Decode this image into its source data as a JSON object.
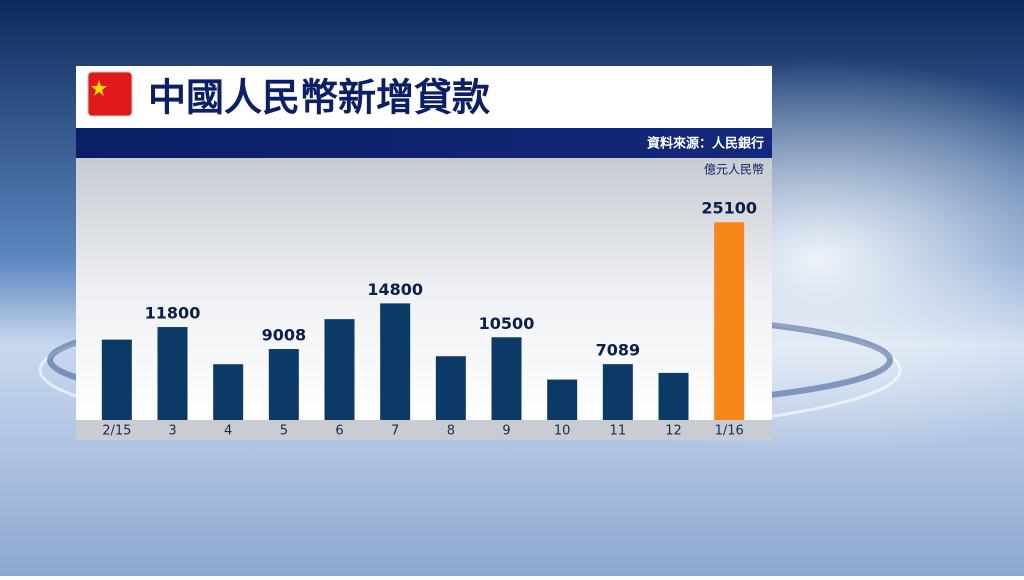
{
  "chart_data": {
    "type": "bar",
    "title": "中國人民幣新增貸款",
    "source": "資料來源：人民銀行",
    "unit": "億元人民幣",
    "categories": [
      "2/15",
      "3",
      "4",
      "5",
      "6",
      "7",
      "8",
      "9",
      "10",
      "11",
      "12",
      "1/16"
    ],
    "values": [
      10200,
      11800,
      7079,
      9008,
      12800,
      14800,
      8095,
      10500,
      5136,
      7089,
      5978,
      25100
    ],
    "value_labels": [
      null,
      "11800",
      null,
      "9008",
      null,
      "14800",
      null,
      "10500",
      null,
      "7089",
      null,
      "25100"
    ],
    "colors": [
      "#0b3a66",
      "#0b3a66",
      "#0b3a66",
      "#0b3a66",
      "#0b3a66",
      "#0b3a66",
      "#0b3a66",
      "#0b3a66",
      "#0b3a66",
      "#0b3a66",
      "#0b3a66",
      "#f7861b"
    ],
    "ylim": [
      0,
      33000
    ]
  }
}
